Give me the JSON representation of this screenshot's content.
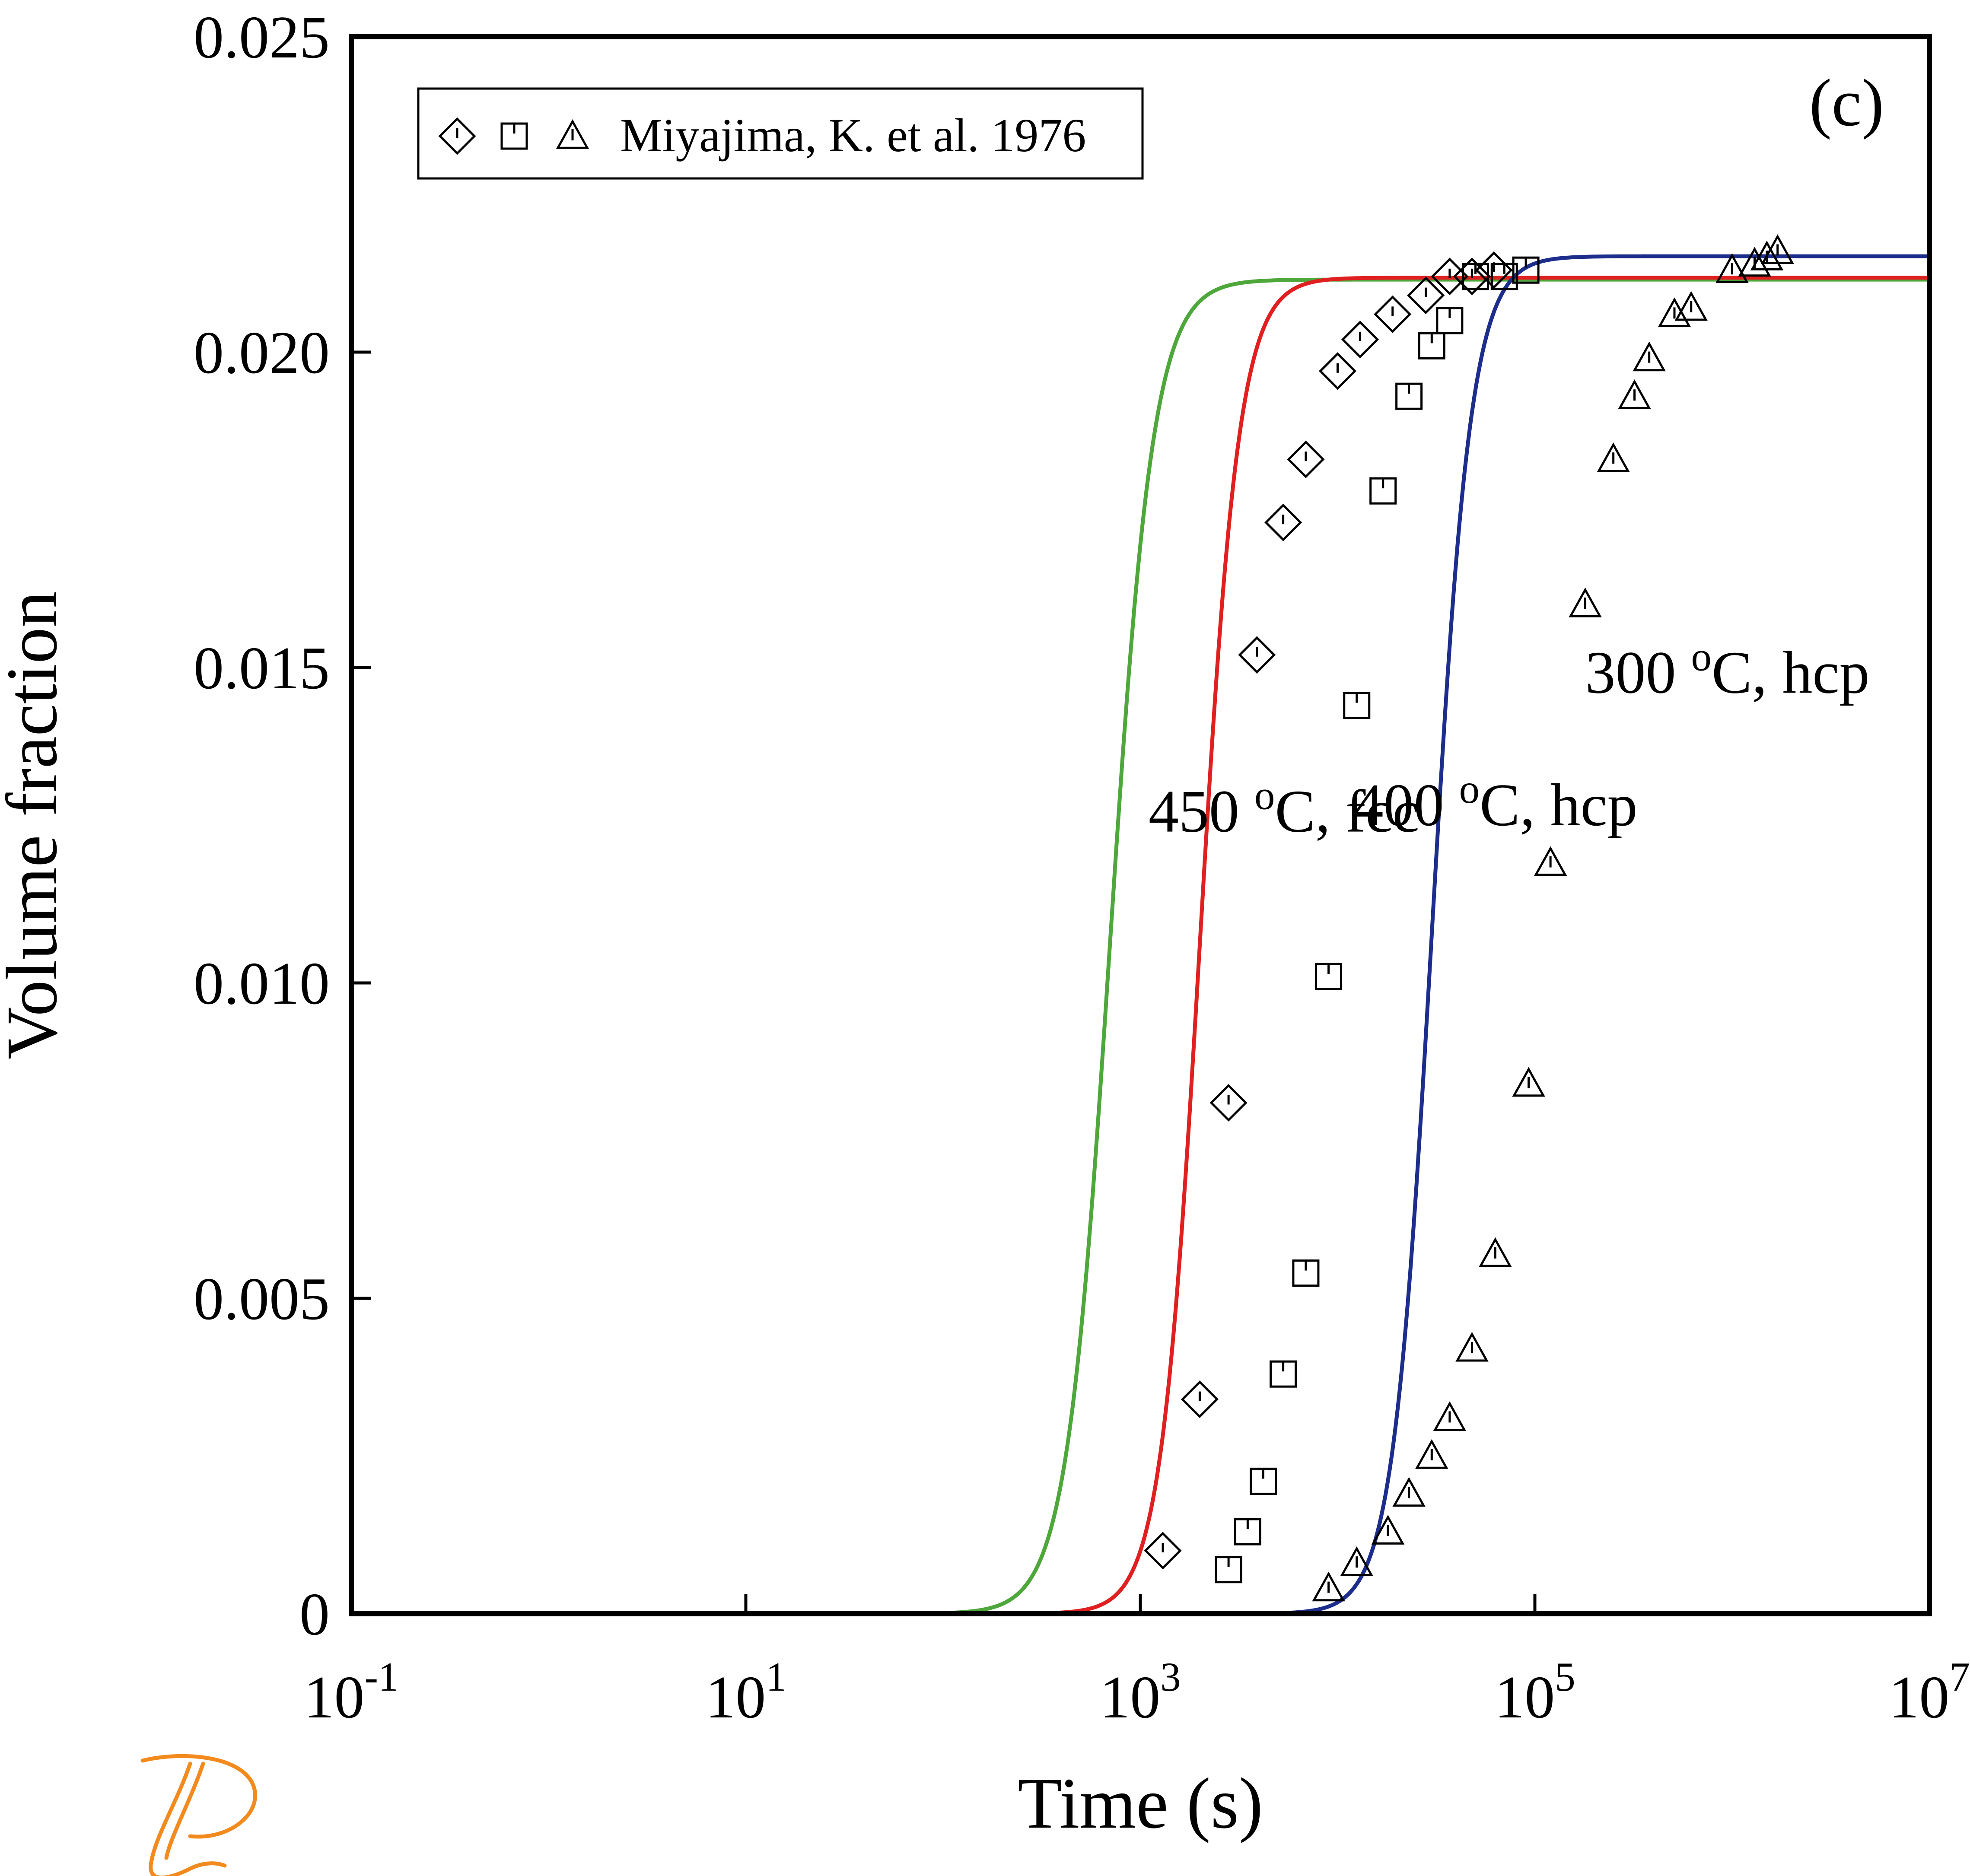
{
  "chart_data": {
    "type": "scatter",
    "panel_label": "(c)",
    "xlabel": "Time (s)",
    "ylabel": "Volume fraction",
    "xscale": "log",
    "xlim": [
      0.1,
      10000000
    ],
    "ylim": [
      0,
      0.025
    ],
    "x_ticks": [
      {
        "value": 0.1,
        "base": "10",
        "exp": "-1"
      },
      {
        "value": 10,
        "base": "10",
        "exp": "1"
      },
      {
        "value": 1000,
        "base": "10",
        "exp": "3"
      },
      {
        "value": 100000,
        "base": "10",
        "exp": "5"
      },
      {
        "value": 10000000,
        "base": "10",
        "exp": "7"
      }
    ],
    "y_ticks": [
      {
        "value": 0,
        "label": "0"
      },
      {
        "value": 0.005,
        "label": "0.005"
      },
      {
        "value": 0.01,
        "label": "0.010"
      },
      {
        "value": 0.015,
        "label": "0.015"
      },
      {
        "value": 0.02,
        "label": "0.020"
      },
      {
        "value": 0.025,
        "label": "0.025"
      }
    ],
    "grid": false,
    "legend": {
      "placement": "top-left",
      "text": "Miyajima, K. et al. 1976",
      "markers": [
        "diamond",
        "square",
        "triangle"
      ]
    },
    "curve_labels": [
      {
        "base": "450 ",
        "sup": "o",
        "rest": "C, fcc",
        "x": 1100,
        "y": 0.0124
      },
      {
        "base": "400 ",
        "sup": "o",
        "rest": "C, hcp",
        "x": 12000,
        "y": 0.0125
      },
      {
        "base": "300 ",
        "sup": "o",
        "rest": "C, hcp",
        "x": 180000,
        "y": 0.0146
      }
    ],
    "curves": [
      {
        "color": "#4ea73a",
        "mid": 700,
        "k": 9,
        "ymax": 0.02115
      },
      {
        "color": "#e02020",
        "mid": 2000,
        "k": 10,
        "ymax": 0.02118
      },
      {
        "color": "#1c2d8c",
        "mid": 30000,
        "k": 10,
        "ymax": 0.02152
      }
    ],
    "series": [
      {
        "marker": "diamond",
        "points": [
          [
            1300,
            0.001
          ],
          [
            2000,
            0.0034
          ],
          [
            2800,
            0.0081
          ],
          [
            3900,
            0.0152
          ],
          [
            5300,
            0.0173
          ],
          [
            6900,
            0.0183
          ],
          [
            10000,
            0.0197
          ],
          [
            13000,
            0.0202
          ],
          [
            19000,
            0.0206
          ],
          [
            28000,
            0.0209
          ],
          [
            37000,
            0.0212
          ],
          [
            48000,
            0.0212
          ],
          [
            62000,
            0.0213
          ]
        ]
      },
      {
        "marker": "square",
        "points": [
          [
            2800,
            0.0007
          ],
          [
            3500,
            0.0013
          ],
          [
            4200,
            0.0021
          ],
          [
            5300,
            0.0038
          ],
          [
            6900,
            0.0054
          ],
          [
            9000,
            0.0101
          ],
          [
            12500,
            0.0144
          ],
          [
            17000,
            0.0178
          ],
          [
            23000,
            0.0193
          ],
          [
            30000,
            0.0201
          ],
          [
            37000,
            0.0205
          ],
          [
            50000,
            0.0212
          ],
          [
            70000,
            0.0212
          ],
          [
            90000,
            0.0213
          ]
        ]
      },
      {
        "marker": "triangle",
        "points": [
          [
            9000,
            0.0004
          ],
          [
            12500,
            0.0008
          ],
          [
            18000,
            0.0013
          ],
          [
            23000,
            0.0019
          ],
          [
            30000,
            0.0025
          ],
          [
            37000,
            0.0031
          ],
          [
            48000,
            0.0042
          ],
          [
            63000,
            0.0057
          ],
          [
            93000,
            0.0084
          ],
          [
            120000,
            0.0119
          ],
          [
            180000,
            0.016
          ],
          [
            250000,
            0.0183
          ],
          [
            320000,
            0.0193
          ],
          [
            380000,
            0.0199
          ],
          [
            510000,
            0.0206
          ],
          [
            620000,
            0.0207
          ],
          [
            1000000,
            0.0213
          ],
          [
            1300000,
            0.0214
          ],
          [
            1500000,
            0.0215
          ],
          [
            1700000,
            0.0216
          ]
        ]
      }
    ]
  }
}
